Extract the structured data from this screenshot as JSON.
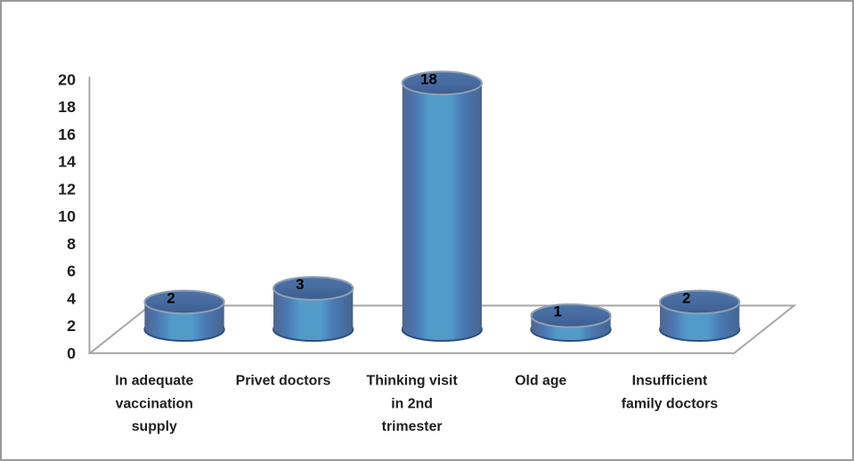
{
  "window": {
    "background": "#ffffff",
    "frame_border_color": "#999999"
  },
  "chart_data": {
    "type": "bar",
    "subtype": "3d-cylinder",
    "title": "",
    "xlabel": "",
    "ylabel": "",
    "categories": [
      "In adequate vaccination supply",
      "Privet doctors",
      "Thinking visit in 2nd trimester",
      "Old age",
      "Insufficient family doctors"
    ],
    "category_lines": [
      [
        "In adequate",
        "vaccination",
        "supply"
      ],
      [
        "Privet doctors"
      ],
      [
        "Thinking visit",
        "in 2nd",
        "trimester"
      ],
      [
        "Old age"
      ],
      [
        "Insufficient",
        "family doctors"
      ]
    ],
    "values": [
      2,
      3,
      18,
      1,
      2
    ],
    "data_labels": [
      "2",
      "3",
      "18",
      "1",
      "2"
    ],
    "ylim": [
      0,
      20
    ],
    "ytick_step": 2,
    "yticks": [
      0,
      2,
      4,
      6,
      8,
      10,
      12,
      14,
      16,
      18,
      20
    ],
    "grid": false,
    "legend": "none",
    "colors": {
      "body_edge_dark": "#50668e",
      "body_mid_blue": "#4b76b2",
      "body_center_light": "#529bc8",
      "body_right_blue": "#4a79b4",
      "body_right_dark": "#47648f",
      "top_face_light": "#4d74a6",
      "top_face_mid": "#466a9e",
      "top_face_dark": "#3c5c90",
      "top_rim": "#8fa0b4",
      "bottom_outline": "#2d4f80",
      "axis_line": "#a6a6a6",
      "tick_label": "#1f1f1f",
      "category_label": "#1f1f1f",
      "data_label": "#000000"
    }
  }
}
